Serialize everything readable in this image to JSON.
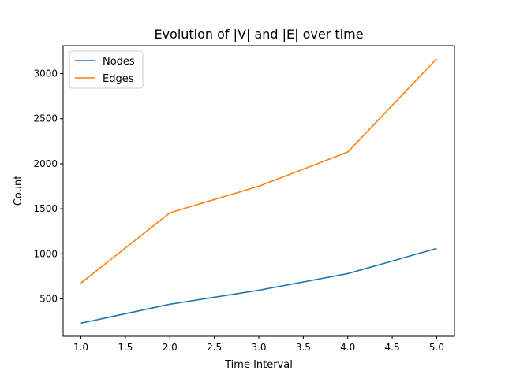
{
  "chart_data": {
    "type": "line",
    "title": "Evolution of |V| and |E| over time",
    "xlabel": "Time Interval",
    "ylabel": "Count",
    "x": [
      1,
      2,
      3,
      4,
      5
    ],
    "series": [
      {
        "name": "Nodes",
        "color": "#1f77b4",
        "values": [
          230,
          440,
          595,
          780,
          1060
        ]
      },
      {
        "name": "Edges",
        "color": "#ff7f0e",
        "values": [
          675,
          1455,
          1750,
          2130,
          3165
        ]
      }
    ],
    "xlim": [
      0.8,
      5.2
    ],
    "ylim": [
      84.25,
      3310.75
    ],
    "xticks": [
      1.0,
      1.5,
      2.0,
      2.5,
      3.0,
      3.5,
      4.0,
      4.5,
      5.0
    ],
    "xtick_labels": [
      "1.0",
      "1.5",
      "2.0",
      "2.5",
      "3.0",
      "3.5",
      "4.0",
      "4.5",
      "5.0"
    ],
    "yticks": [
      500,
      1000,
      1500,
      2000,
      2500,
      3000
    ],
    "ytick_labels": [
      "500",
      "1000",
      "1500",
      "2000",
      "2500",
      "3000"
    ],
    "grid": false,
    "legend_position": "top-left"
  }
}
